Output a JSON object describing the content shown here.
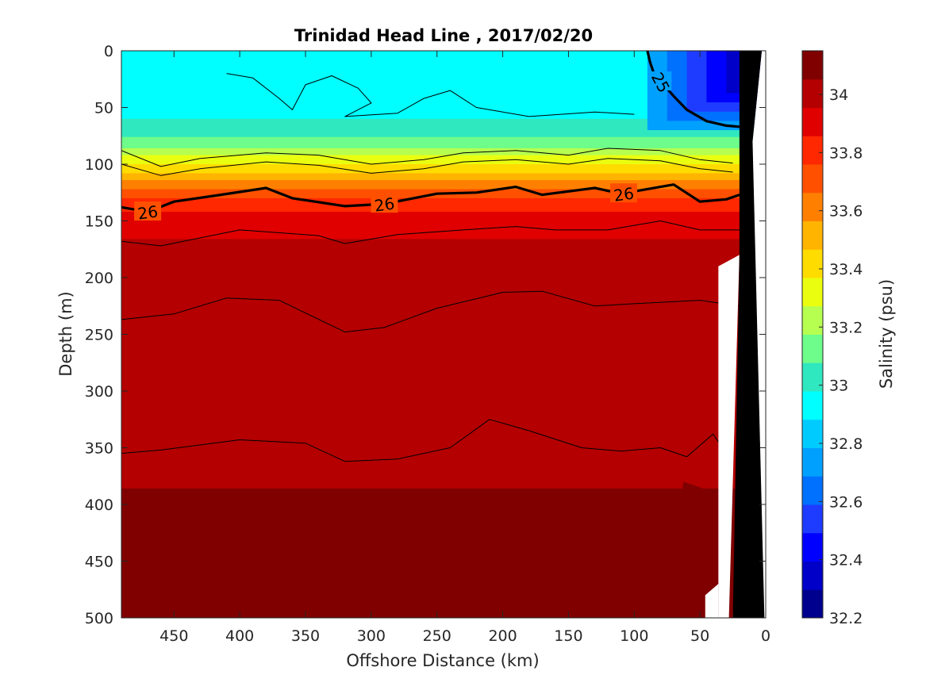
{
  "chart_data": {
    "type": "heatmap",
    "title": "Trinidad Head Line , 2017/02/20",
    "xlabel": "Offshore Distance (km)",
    "ylabel": "Depth (m)",
    "xlim": [
      490,
      0
    ],
    "ylim": [
      0,
      500
    ],
    "x_ticks": [
      450,
      400,
      350,
      300,
      250,
      200,
      150,
      100,
      50,
      0
    ],
    "y_ticks": [
      0,
      50,
      100,
      150,
      200,
      250,
      300,
      350,
      400,
      450,
      500
    ],
    "colorbar": {
      "label": "Salinity (psu)",
      "range": [
        32.2,
        34.15
      ],
      "ticks": [
        "32.2",
        "32.4",
        "32.6",
        "32.8",
        "33",
        "33.2",
        "33.4",
        "33.6",
        "33.8",
        "34"
      ]
    },
    "colormap": [
      "#00008f",
      "#0000c8",
      "#0000ff",
      "#1e3cff",
      "#0070ff",
      "#00a0ff",
      "#00cbff",
      "#00ffff",
      "#30e8c0",
      "#6efc8a",
      "#b6ff50",
      "#eaff10",
      "#ffdc00",
      "#ffb400",
      "#ff8000",
      "#ff5000",
      "#ff2800",
      "#e00000",
      "#b40000",
      "#800000"
    ],
    "salinity_profile": [
      {
        "depth": 0,
        "salinity": 32.92
      },
      {
        "depth": 60,
        "salinity": 32.98
      },
      {
        "depth": 80,
        "salinity": 33.1
      },
      {
        "depth": 95,
        "salinity": 33.3
      },
      {
        "depth": 110,
        "salinity": 33.5
      },
      {
        "depth": 125,
        "salinity": 33.7
      },
      {
        "depth": 140,
        "salinity": 33.85
      },
      {
        "depth": 160,
        "salinity": 33.95
      },
      {
        "depth": 250,
        "salinity": 34.02
      },
      {
        "depth": 500,
        "salinity": 34.08
      }
    ],
    "coastal_fresh_patch": {
      "x_range": [
        0,
        90
      ],
      "depth_range": [
        0,
        70
      ],
      "min_salinity": 32.3
    },
    "deep_max_patches": [
      {
        "x_range": [
          80,
          30
        ],
        "depth_range": [
          380,
          500
        ],
        "salinity": 34.12
      },
      {
        "x_range": [
          220,
          150
        ],
        "depth_range": [
          440,
          500
        ],
        "salinity": 34.12
      }
    ],
    "contours": [
      {
        "label": "25",
        "bold": true,
        "points": [
          [
            90,
            0
          ],
          [
            88,
            10
          ],
          [
            85,
            20
          ],
          [
            70,
            40
          ],
          [
            60,
            52
          ],
          [
            45,
            62
          ],
          [
            30,
            66
          ],
          [
            20,
            67
          ]
        ]
      },
      {
        "label": "26",
        "bold": true,
        "points": [
          [
            490,
            138
          ],
          [
            470,
            142
          ],
          [
            450,
            133
          ],
          [
            420,
            128
          ],
          [
            380,
            121
          ],
          [
            360,
            130
          ],
          [
            320,
            137
          ],
          [
            290,
            135
          ],
          [
            250,
            126
          ],
          [
            220,
            125
          ],
          [
            190,
            120
          ],
          [
            170,
            127
          ],
          [
            130,
            121
          ],
          [
            110,
            126
          ],
          [
            70,
            118
          ],
          [
            50,
            133
          ],
          [
            30,
            131
          ],
          [
            20,
            127
          ]
        ]
      },
      {
        "label": "",
        "bold": false,
        "points": [
          [
            490,
            88
          ],
          [
            460,
            102
          ],
          [
            430,
            95
          ],
          [
            380,
            90
          ],
          [
            340,
            92
          ],
          [
            300,
            100
          ],
          [
            260,
            96
          ],
          [
            230,
            90
          ],
          [
            190,
            88
          ],
          [
            150,
            92
          ],
          [
            120,
            86
          ],
          [
            80,
            88
          ],
          [
            50,
            96
          ],
          [
            25,
            99
          ]
        ]
      },
      {
        "label": "",
        "bold": false,
        "points": [
          [
            490,
            100
          ],
          [
            460,
            110
          ],
          [
            430,
            104
          ],
          [
            380,
            98
          ],
          [
            340,
            101
          ],
          [
            300,
            108
          ],
          [
            260,
            104
          ],
          [
            230,
            98
          ],
          [
            190,
            96
          ],
          [
            150,
            100
          ],
          [
            120,
            95
          ],
          [
            80,
            97
          ],
          [
            50,
            104
          ],
          [
            25,
            107
          ]
        ]
      },
      {
        "label": "",
        "bold": false,
        "points": [
          [
            490,
            168
          ],
          [
            460,
            172
          ],
          [
            400,
            158
          ],
          [
            340,
            163
          ],
          [
            320,
            170
          ],
          [
            280,
            162
          ],
          [
            230,
            158
          ],
          [
            190,
            155
          ],
          [
            160,
            158
          ],
          [
            120,
            158
          ],
          [
            80,
            150
          ],
          [
            50,
            158
          ],
          [
            20,
            158
          ]
        ]
      },
      {
        "label": "",
        "bold": false,
        "points": [
          [
            490,
            237
          ],
          [
            450,
            232
          ],
          [
            410,
            218
          ],
          [
            370,
            220
          ],
          [
            320,
            248
          ],
          [
            290,
            244
          ],
          [
            250,
            227
          ],
          [
            200,
            213
          ],
          [
            170,
            212
          ],
          [
            130,
            225
          ],
          [
            100,
            223
          ],
          [
            50,
            220
          ],
          [
            20,
            225
          ]
        ]
      },
      {
        "label": "",
        "bold": false,
        "points": [
          [
            490,
            355
          ],
          [
            460,
            352
          ],
          [
            400,
            343
          ],
          [
            350,
            346
          ],
          [
            320,
            362
          ],
          [
            280,
            360
          ],
          [
            240,
            350
          ],
          [
            210,
            325
          ],
          [
            180,
            335
          ],
          [
            140,
            350
          ],
          [
            110,
            353
          ],
          [
            80,
            350
          ],
          [
            60,
            358
          ],
          [
            40,
            338
          ],
          [
            30,
            355
          ]
        ]
      },
      {
        "label": "",
        "bold": false,
        "points": [
          [
            410,
            20
          ],
          [
            390,
            24
          ],
          [
            370,
            42
          ],
          [
            360,
            52
          ],
          [
            350,
            30
          ],
          [
            330,
            22
          ],
          [
            310,
            33
          ],
          [
            300,
            46
          ],
          [
            320,
            58
          ],
          [
            280,
            55
          ],
          [
            260,
            42
          ],
          [
            240,
            35
          ],
          [
            220,
            50
          ],
          [
            180,
            58
          ],
          [
            130,
            54
          ],
          [
            100,
            56
          ]
        ]
      }
    ]
  }
}
